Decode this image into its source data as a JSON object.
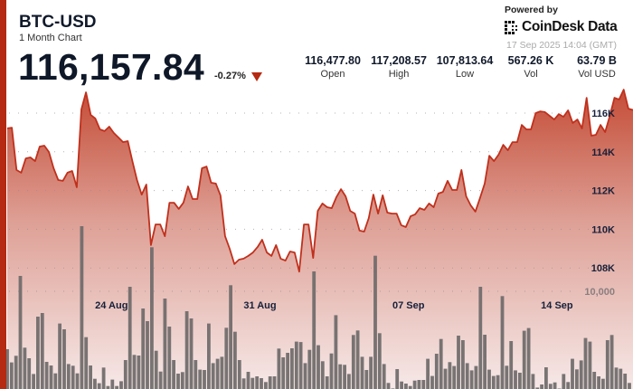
{
  "header": {
    "title": "BTC-USD",
    "subtitle": "1 Month Chart",
    "price": "116,157.84",
    "change": "-0.27%",
    "change_direction": "down",
    "stats": [
      {
        "value": "116,477.80",
        "label": "Open"
      },
      {
        "value": "117,208.57",
        "label": "High"
      },
      {
        "value": "107,813.64",
        "label": "Low"
      },
      {
        "value": "567.26 K",
        "label": "Vol"
      },
      {
        "value": "63.79 B",
        "label": "Vol USD"
      }
    ]
  },
  "branding": {
    "powered_by": "Powered by",
    "logo_text": "CoinDesk Data",
    "timestamp": "17 Sep 2025 14:04 (GMT)"
  },
  "colors": {
    "accent": "#b52a12",
    "line": "#c0301c",
    "fill_top": "#c44a34",
    "fill_bottom": "#f6e9e8",
    "volume_bar": "#6e6a6a"
  },
  "chart_data": {
    "type": "line",
    "x_start": "2025-08-19T02:00",
    "x_end": "2025-09-17T14:04",
    "x_ticks": [
      {
        "label": "24 Aug",
        "date": "2025-08-24T00:00"
      },
      {
        "label": "31 Aug",
        "date": "2025-08-31T00:00"
      },
      {
        "label": "07 Sep",
        "date": "2025-09-07T00:00"
      },
      {
        "label": "14 Sep",
        "date": "2025-09-14T00:00"
      }
    ],
    "y_ticks": [
      {
        "label": "116K",
        "value": 116
      },
      {
        "label": "114K",
        "value": 114
      },
      {
        "label": "112K",
        "value": 112
      },
      {
        "label": "110K",
        "value": 110
      },
      {
        "label": "108K",
        "value": 108
      }
    ],
    "volume_tick": {
      "label": "10,000",
      "value": 10000
    },
    "grid": true,
    "price_k": [
      115.21,
      115.25,
      113.06,
      112.92,
      113.66,
      113.71,
      113.52,
      114.27,
      114.32,
      113.99,
      113.15,
      112.54,
      112.5,
      112.92,
      113.01,
      112.17,
      116.19,
      117.07,
      115.91,
      115.72,
      115.16,
      115.07,
      115.3,
      114.97,
      114.74,
      114.5,
      114.55,
      113.52,
      112.54,
      111.79,
      112.31,
      109.18,
      110.25,
      110.25,
      109.64,
      111.37,
      111.37,
      111.05,
      111.37,
      112.21,
      111.56,
      111.56,
      113.15,
      113.24,
      112.4,
      112.36,
      111.75,
      109.64,
      108.99,
      108.2,
      108.43,
      108.48,
      108.62,
      108.8,
      109.08,
      109.46,
      108.8,
      108.62,
      109.18,
      108.48,
      108.38,
      108.85,
      108.8,
      107.81,
      110.25,
      110.25,
      108.52,
      110.95,
      111.33,
      111.14,
      111.09,
      111.65,
      112.07,
      111.7,
      110.95,
      110.81,
      109.93,
      109.88,
      110.58,
      111.79,
      110.81,
      111.75,
      110.86,
      110.81,
      110.81,
      110.21,
      110.11,
      110.67,
      110.77,
      111.09,
      111.0,
      111.33,
      111.14,
      111.84,
      111.93,
      112.5,
      112.03,
      112.03,
      113.06,
      111.7,
      111.23,
      110.91,
      111.61,
      112.36,
      113.8,
      113.52,
      113.85,
      114.36,
      114.08,
      114.5,
      114.5,
      115.39,
      115.16,
      115.16,
      116.0,
      116.09,
      116.05,
      115.86,
      115.67,
      115.95,
      115.81,
      116.14,
      115.49,
      115.67,
      115.21,
      116.79,
      114.83,
      114.88,
      115.39,
      115.02,
      115.86,
      116.79,
      116.7,
      117.21,
      116.23,
      116.16
    ],
    "volume": [
      4070,
      2720,
      3400,
      11570,
      4230,
      3150,
      1540,
      7410,
      7780,
      2780,
      2410,
      1600,
      6700,
      6110,
      2560,
      2380,
      1600,
      16670,
      5310,
      2410,
      1050,
      590,
      2190,
      310,
      960,
      310,
      800,
      2960,
      10460,
      3490,
      3430,
      8240,
      6940,
      14510,
      3920,
      1790,
      9260,
      6390,
      2960,
      1570,
      1730,
      7960,
      7220,
      2960,
      1980,
      1940,
      6700,
      2650,
      3090,
      3300,
      6270,
      10620,
      5860,
      2960,
      1080,
      1760,
      1140,
      1300,
      1110,
      710,
      1300,
      1300,
      4140,
      3240,
      3700,
      4170,
      4850,
      4810,
      2650,
      4010,
      12040,
      4480,
      2840,
      1300,
      3640,
      7560,
      2530,
      2470,
      1540,
      5530,
      5990,
      3300,
      1940,
      3300,
      13640,
      5710,
      2560,
      620,
      60,
      2040,
      770,
      560,
      310,
      860,
      930,
      930,
      3090,
      1330,
      3610,
      5120,
      2070,
      2750,
      2350,
      5460,
      5000,
      2650,
      1910,
      2350,
      10460,
      5560,
      1980,
      1330,
      1420,
      9510,
      2380,
      4910,
      1910,
      1670,
      5960,
      6240,
      1540,
      150,
      460,
      2220,
      530,
      680,
      50,
      1540,
      710,
      3090,
      2010,
      2930,
      5220,
      4850,
      1760,
      1300,
      1050,
      5000,
      5530,
      2190,
      2070,
      1570,
      620
    ]
  }
}
